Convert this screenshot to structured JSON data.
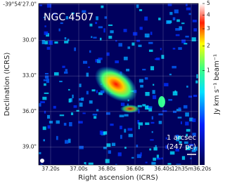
{
  "chart_data": {
    "type": "image",
    "title": "NGC 4507",
    "x_label": "Right ascension (ICRS)",
    "y_label": "Declination (ICRS)",
    "colorbar_label": "Jy km s⁻¹ beam⁻¹",
    "scalebar_label": "1 arcsec",
    "scalebar_sublabel": "(247 pc)",
    "xlim": [
      37.285,
      36.15
    ],
    "xticks": [
      {
        "value": 37.2,
        "label": "37.20s"
      },
      {
        "value": 37.0,
        "label": "37.00s"
      },
      {
        "value": 36.8,
        "label": "36.80s"
      },
      {
        "value": 36.6,
        "label": "36.60s"
      },
      {
        "value": 36.4,
        "label": "36.40s"
      },
      {
        "value": 36.2,
        "label": "12h35m36.20s"
      }
    ],
    "ylim": [
      40.5,
      26.9
    ],
    "yticks": [
      {
        "value": 27,
        "label": "-39°54'27.0\""
      },
      {
        "value": 30,
        "label": "30.0\""
      },
      {
        "value": 33,
        "label": "33.0\""
      },
      {
        "value": 36,
        "label": "36.0\""
      },
      {
        "value": 39,
        "label": "39.0\""
      }
    ],
    "cbar_lim": [
      0,
      5
    ],
    "cbar_ticks": [
      1,
      2,
      3,
      4,
      5
    ],
    "cbar_scale": "cbrt",
    "grid": true
  }
}
